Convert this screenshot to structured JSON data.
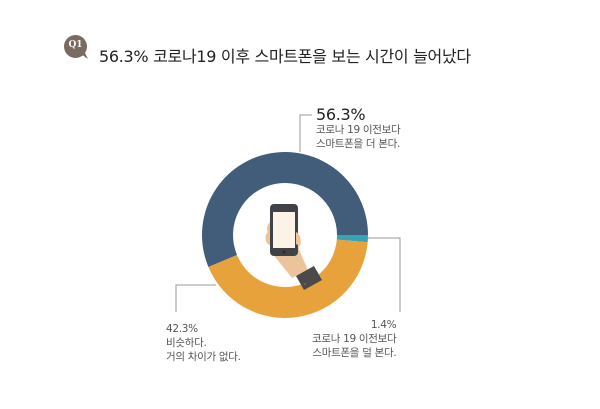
{
  "header": {
    "badge": "Q1",
    "title": "56.3% 코로나19 이후 스마트폰을 보는 시간이 늘어났다"
  },
  "colors": {
    "badge": "#7a6a60",
    "more": "#415d7a",
    "same": "#e8a23c",
    "less": "#36a4b4",
    "leader": "#9a9a9a",
    "phone_body": "#3f4347",
    "phone_screen": "#fbf3e6",
    "hand": "#ecc49c",
    "sleeve": "#4a4a4a"
  },
  "labels": {
    "more": {
      "pct": "56.3%",
      "line1": "코로나 19 이전보다",
      "line2": "스마트폰을 더 본다."
    },
    "same": {
      "pct": "42.3%",
      "line1": "비슷하다.",
      "line2": "거의 차이가 없다."
    },
    "less": {
      "pct": "1.4%",
      "line1": "코로나 19 이전보다",
      "line2": "스마트폰을 덜 본다."
    }
  },
  "chart_data": {
    "type": "pie",
    "variant": "donut",
    "title": "56.3% 코로나19 이후 스마트폰을 보는 시간이 늘어났다",
    "categories": [
      "코로나 19 이전보다 스마트폰을 더 본다.",
      "비슷하다. 거의 차이가 없다.",
      "코로나 19 이전보다 스마트폰을 덜 본다."
    ],
    "values": [
      56.3,
      42.3,
      1.4
    ],
    "unit": "%",
    "colors": [
      "#415d7a",
      "#e8a23c",
      "#36a4b4"
    ],
    "center_icon": "hand-holding-smartphone",
    "legend": "none (leader-line callouts)"
  }
}
